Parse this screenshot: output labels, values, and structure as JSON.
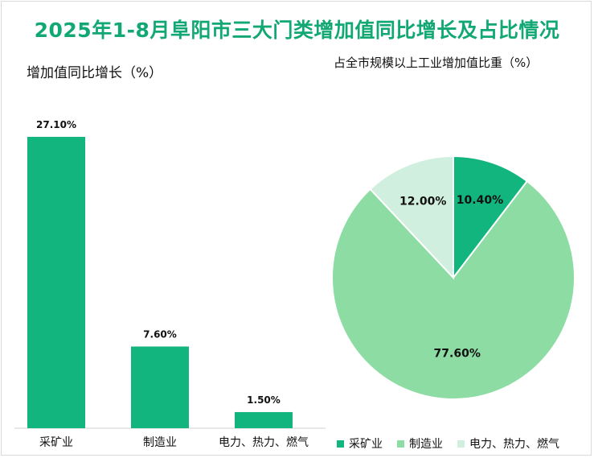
{
  "title": "2025年1-8月阜阳市三大门类增加值同比增长及占比情况",
  "bar_subtitle": "增加值同比增长（%）",
  "pie_subtitle": "占全市规模以上工业增加值比重（%）",
  "colors": {
    "mining": "#13b57f",
    "manufacturing": "#8cdca4",
    "power": "#d0efde",
    "title": "#12a874"
  },
  "chart_data": [
    {
      "type": "bar",
      "title": "增加值同比增长（%）",
      "categories": [
        "采矿业",
        "制造业",
        "电力、热力、燃气"
      ],
      "values": [
        27.1,
        7.6,
        1.5
      ],
      "data_labels": [
        "27.10%",
        "7.60%",
        "1.50%"
      ],
      "ylim": [
        0,
        28
      ],
      "grid": false
    },
    {
      "type": "pie",
      "title": "占全市规模以上工业增加值比重（%）",
      "labels": [
        "采矿业",
        "制造业",
        "电力、热力、燃气"
      ],
      "values": [
        10.4,
        77.6,
        12.0
      ],
      "data_labels": [
        "10.40%",
        "77.60%",
        "12.00%"
      ],
      "legend": "bottom"
    }
  ]
}
